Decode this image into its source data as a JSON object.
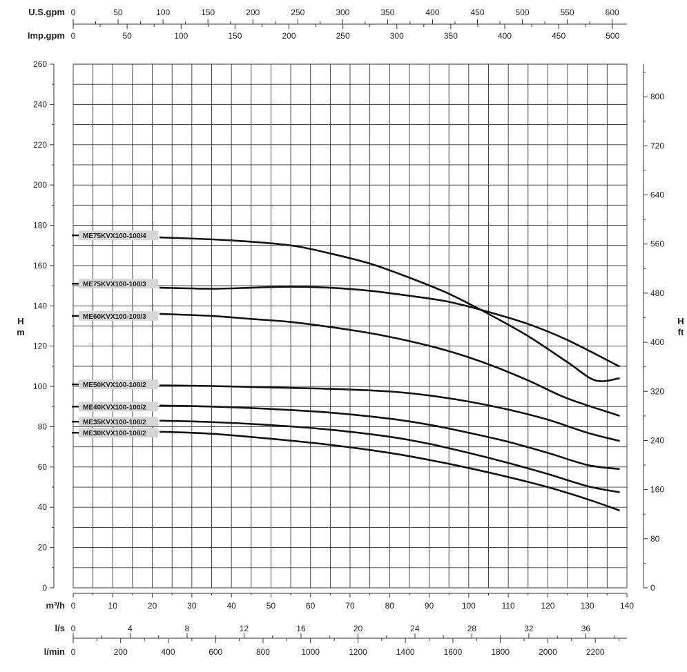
{
  "chart_data": {
    "type": "line",
    "title": "",
    "x_axis": {
      "label": "m³/h",
      "range": [
        0,
        140
      ],
      "ticks": [
        0,
        10,
        20,
        30,
        40,
        50,
        60,
        70,
        80,
        90,
        100,
        110,
        120,
        130,
        140
      ]
    },
    "y_axis_left": {
      "label_line1": "H",
      "label_line2": "m",
      "range": [
        0,
        260
      ],
      "ticks": [
        0,
        20,
        40,
        60,
        80,
        100,
        120,
        140,
        160,
        180,
        200,
        220,
        240,
        260
      ]
    },
    "y_axis_right": {
      "label_line1": "H",
      "label_line2": "ft",
      "ticks": [
        0,
        80,
        160,
        240,
        320,
        400,
        480,
        560,
        640,
        720,
        800
      ]
    },
    "secondary_x_axes": {
      "us_gpm": {
        "label": "U.S.gpm",
        "ticks": [
          0,
          50,
          100,
          150,
          200,
          250,
          300,
          350,
          400,
          450,
          500,
          550,
          600
        ]
      },
      "imp_gpm": {
        "label": "Imp.gpm",
        "ticks": [
          0,
          50,
          100,
          150,
          200,
          250,
          300,
          350,
          400,
          450,
          500
        ]
      },
      "l_s": {
        "label": "l/s",
        "ticks": [
          0,
          4,
          8,
          12,
          16,
          20,
          24,
          28,
          32,
          36
        ]
      },
      "l_min": {
        "label": "l/min",
        "ticks": [
          0,
          200,
          400,
          600,
          800,
          1000,
          1200,
          1400,
          1600,
          1800,
          2000,
          2200
        ]
      }
    },
    "grid": true,
    "series": [
      {
        "name": "ME75KVX100-100/4",
        "label_y": 175,
        "points": [
          [
            22,
            174
          ],
          [
            40,
            172.5
          ],
          [
            55,
            170
          ],
          [
            65,
            166
          ],
          [
            75,
            161
          ],
          [
            85,
            154
          ],
          [
            95,
            146
          ],
          [
            105,
            136
          ],
          [
            115,
            125
          ],
          [
            125,
            112
          ],
          [
            132,
            103
          ],
          [
            138,
            104
          ]
        ]
      },
      {
        "name": "ME75KVX100-100/3",
        "label_y": 151,
        "points": [
          [
            22,
            149
          ],
          [
            35,
            148.5
          ],
          [
            45,
            149
          ],
          [
            55,
            149.5
          ],
          [
            65,
            149
          ],
          [
            75,
            147.5
          ],
          [
            85,
            145
          ],
          [
            95,
            142
          ],
          [
            105,
            137
          ],
          [
            115,
            131
          ],
          [
            125,
            123
          ],
          [
            138,
            110
          ]
        ]
      },
      {
        "name": "ME60KVX100-100/3",
        "label_y": 135,
        "points": [
          [
            22,
            136
          ],
          [
            35,
            135
          ],
          [
            45,
            133.5
          ],
          [
            55,
            132
          ],
          [
            65,
            129.5
          ],
          [
            75,
            126.5
          ],
          [
            85,
            122.5
          ],
          [
            95,
            117.5
          ],
          [
            105,
            111
          ],
          [
            115,
            103
          ],
          [
            125,
            94
          ],
          [
            138,
            85.5
          ]
        ]
      },
      {
        "name": "ME50KVX100-100/2",
        "label_y": 101,
        "points": [
          [
            22,
            100.5
          ],
          [
            35,
            100.2
          ],
          [
            50,
            99.5
          ],
          [
            65,
            98.8
          ],
          [
            80,
            97.5
          ],
          [
            90,
            95.5
          ],
          [
            100,
            92.5
          ],
          [
            110,
            88.5
          ],
          [
            120,
            83.5
          ],
          [
            130,
            77
          ],
          [
            138,
            73
          ]
        ]
      },
      {
        "name": "ME40KVX100-100/2",
        "label_y": 90,
        "points": [
          [
            22,
            90.5
          ],
          [
            35,
            90
          ],
          [
            50,
            88.8
          ],
          [
            65,
            87
          ],
          [
            80,
            84
          ],
          [
            90,
            81
          ],
          [
            100,
            77
          ],
          [
            110,
            72.5
          ],
          [
            120,
            67
          ],
          [
            130,
            61
          ],
          [
            138,
            59
          ]
        ]
      },
      {
        "name": "ME35KVX100-100/2",
        "label_y": 82.5,
        "points": [
          [
            22,
            83
          ],
          [
            35,
            82.3
          ],
          [
            50,
            80.8
          ],
          [
            65,
            78.5
          ],
          [
            80,
            75
          ],
          [
            90,
            71.5
          ],
          [
            100,
            67
          ],
          [
            110,
            62
          ],
          [
            120,
            56.5
          ],
          [
            130,
            50.5
          ],
          [
            138,
            47.5
          ]
        ]
      },
      {
        "name": "ME30KVX100-100/2",
        "label_y": 77,
        "points": [
          [
            22,
            77.5
          ],
          [
            35,
            76.5
          ],
          [
            50,
            74
          ],
          [
            65,
            71
          ],
          [
            80,
            67
          ],
          [
            90,
            63.5
          ],
          [
            100,
            59.5
          ],
          [
            110,
            55
          ],
          [
            120,
            50
          ],
          [
            130,
            44
          ],
          [
            138,
            38.5
          ]
        ]
      }
    ]
  }
}
